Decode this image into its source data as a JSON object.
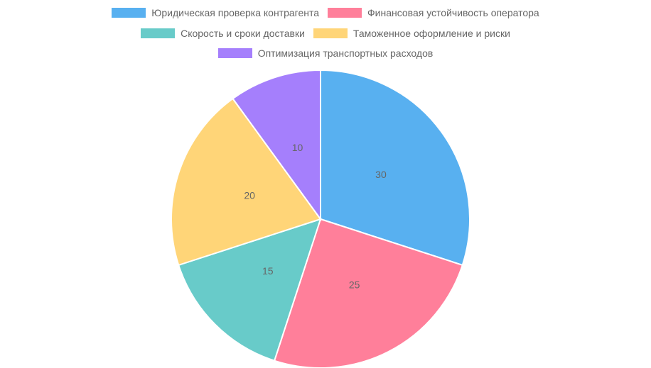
{
  "chart_data": {
    "type": "pie",
    "categories": [
      "Юридическая проверка контрагента",
      "Финансовая устойчивость оператора",
      "Скорость и сроки доставки",
      "Таможенное оформление и риски",
      "Оптимизация транспортных расходов"
    ],
    "values": [
      30,
      25,
      15,
      20,
      10
    ],
    "colors": [
      "#58b0f0",
      "#ff7f9a",
      "#68cbc9",
      "#ffd578",
      "#a57ffc"
    ],
    "legend": "top",
    "data_labels": true
  }
}
